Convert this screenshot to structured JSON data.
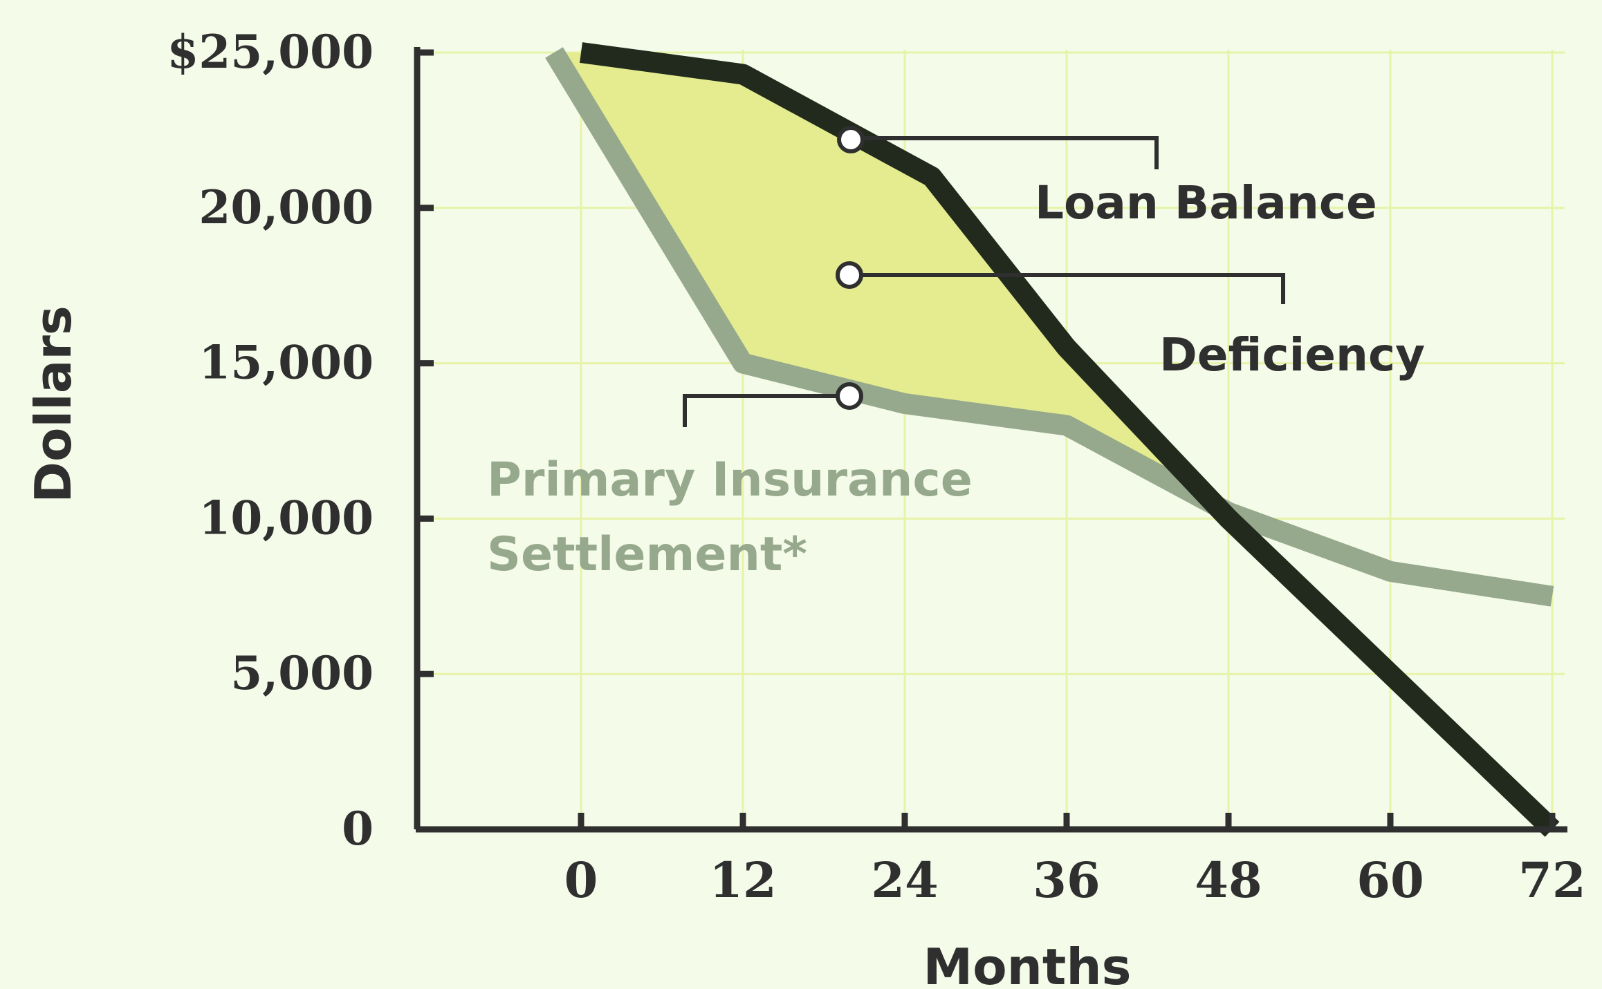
{
  "chart_data": {
    "type": "line",
    "xlabel": "Months",
    "ylabel": "Dollars",
    "xlim": [
      0,
      72
    ],
    "ylim": [
      0,
      25000
    ],
    "x_ticks": [
      "0",
      "12",
      "24",
      "36",
      "48",
      "60",
      "72"
    ],
    "y_ticks": [
      "0",
      "5,000",
      "10,000",
      "15,000",
      "20,000",
      "$25,000"
    ],
    "grid": true,
    "series": [
      {
        "name": "Loan Balance",
        "color": "#222a1e",
        "x": [
          0,
          12,
          26,
          36,
          48,
          60,
          72
        ],
        "y": [
          25000,
          24300,
          21000,
          15500,
          10000,
          5000,
          0
        ]
      },
      {
        "name": "Primary Insurance Settlement*",
        "color": "#97a98d",
        "x": [
          -2,
          12,
          24,
          36,
          48,
          60,
          72
        ],
        "y": [
          25000,
          15000,
          13700,
          13000,
          10200,
          8300,
          7500
        ]
      }
    ],
    "annotations": [
      {
        "text": "Deficiency",
        "type": "shaded region between Loan Balance and Primary Insurance Settlement*"
      }
    ],
    "colors": {
      "background": "#f4fbe9",
      "deficiency_fill": "#e4ec8f",
      "grid": "#e7f3a8",
      "axis": "#2f2f2f"
    }
  }
}
